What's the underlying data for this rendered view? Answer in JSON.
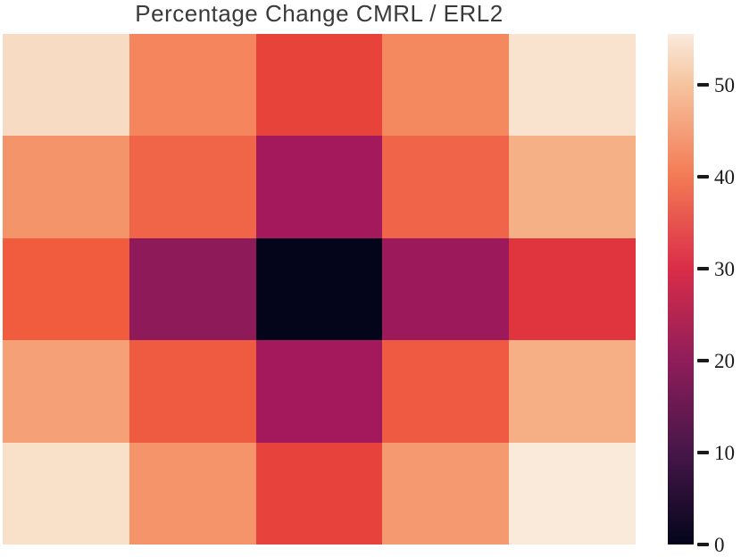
{
  "figure": {
    "title": "Percentage Change CMRL / ERL2",
    "title_color": "#3a3a3a",
    "background_color": "#ffffff"
  },
  "chart_data": {
    "type": "heatmap",
    "title": "Percentage Change CMRL / ERL2",
    "rows": 5,
    "cols": 5,
    "x_tick_labels": [],
    "y_tick_labels": [],
    "colormap": "rocket",
    "vmin": 0,
    "vmax": 55.5,
    "values": [
      [
        52.5,
        41.0,
        34.0,
        41.5,
        53.5
      ],
      [
        43.5,
        38.0,
        22.5,
        38.0,
        46.5
      ],
      [
        37.0,
        20.0,
        0.3,
        21.5,
        31.5
      ],
      [
        44.5,
        36.5,
        22.5,
        36.5,
        46.0
      ],
      [
        53.0,
        43.5,
        34.0,
        44.0,
        54.5
      ]
    ],
    "cell_colors": [
      [
        "#f7dcc3",
        "#f4855d",
        "#e8433a",
        "#f4885f",
        "#f9e3cf"
      ],
      [
        "#f4946a",
        "#f06548",
        "#a3195b",
        "#f06549",
        "#f6b086"
      ],
      [
        "#f15c3e",
        "#8e1a5a",
        "#04051a",
        "#9c1a5c",
        "#e0343f"
      ],
      [
        "#f5a077",
        "#ee5b40",
        "#a3195c",
        "#ef5b42",
        "#f6ae85"
      ],
      [
        "#f8e0c9",
        "#f5936a",
        "#e8423c",
        "#f59a70",
        "#faeada"
      ]
    ],
    "grid": false,
    "colorbar": {
      "position": "right",
      "ticks": [
        0,
        10,
        20,
        30,
        40,
        50
      ],
      "tick_labels": [
        "0",
        "10",
        "20",
        "30",
        "40",
        "50"
      ],
      "gradient_stops": [
        {
          "value": 0,
          "color": "#03051b"
        },
        {
          "value": 10,
          "color": "#461648"
        },
        {
          "value": 20,
          "color": "#8f1d5a"
        },
        {
          "value": 30,
          "color": "#da2d48"
        },
        {
          "value": 40,
          "color": "#f37a54"
        },
        {
          "value": 50,
          "color": "#f6c49f"
        },
        {
          "value": 55.5,
          "color": "#faebdd"
        }
      ]
    }
  }
}
